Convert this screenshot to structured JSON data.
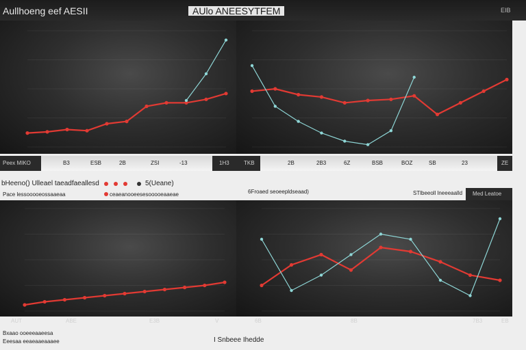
{
  "header": {
    "left_title": "Aullhoeng eef AESII",
    "center_title": "AUlo ANEESYTFEM",
    "right_mark": "EIB"
  },
  "strip_labels": {
    "left_tag": "Peex MIKO",
    "ticks_left": [
      "B3",
      "ESB",
      "2B",
      "ZSI",
      "-13"
    ],
    "mid_tag": "1H3",
    "mid_tag2": "TKB",
    "ticks_right": [
      "2B",
      "2B3",
      "6Z",
      "BSB",
      "BOZ",
      "SB",
      "23"
    ],
    "right_tag": "ZE"
  },
  "legend": {
    "left_label": "bHeeno() Ulleael taeadfaeallesd",
    "left_sub": "Pace lessooooeossaaeaa",
    "mid_label": "5(Ueane)",
    "mid_sub": "ceaeanooeesesooooeaaeae",
    "center_note": "6Froaed seoeepldseaad)",
    "right_note": "STlbeeoll lneeeaalld",
    "right_tag": "Med Leatoe"
  },
  "bottom": {
    "ticks_left": [
      "AUT",
      "ABE",
      "E3B",
      "V"
    ],
    "ticks_right": [
      "6B",
      "8B",
      "7B3",
      "EB"
    ],
    "foot_left_1": "Bxaao ooeeeaaeesa",
    "foot_left_2": "Eeesaa eeaeaaeaaaee",
    "foot_center": "I Snbeee Ihedde"
  },
  "colors": {
    "red": "#e23a33",
    "teal": "#8ed6d6",
    "panel_bg": "#2a2a2a"
  },
  "chart_data": [
    {
      "type": "line",
      "panel": "top-left",
      "series": [
        {
          "color": "red",
          "x": [
            0,
            1,
            2,
            3,
            4,
            5,
            6,
            7,
            8,
            9,
            10
          ],
          "values": [
            12,
            13,
            15,
            14,
            20,
            22,
            35,
            38,
            38,
            41,
            46
          ]
        },
        {
          "color": "teal",
          "x": [
            8,
            9,
            10
          ],
          "values": [
            40,
            63,
            92
          ]
        }
      ],
      "ylim": [
        0,
        100
      ]
    },
    {
      "type": "line",
      "panel": "top-right",
      "series": [
        {
          "color": "red",
          "x": [
            0,
            1,
            2,
            3,
            4,
            5,
            6,
            7,
            8,
            9,
            10,
            11
          ],
          "values": [
            48,
            50,
            45,
            43,
            38,
            40,
            41,
            44,
            28,
            38,
            48,
            58
          ]
        },
        {
          "color": "teal",
          "x": [
            0,
            1,
            2,
            3,
            4,
            5,
            6,
            7
          ],
          "values": [
            70,
            35,
            22,
            12,
            5,
            2,
            14,
            60
          ]
        }
      ],
      "ylim": [
        0,
        100
      ]
    },
    {
      "type": "line",
      "panel": "bottom-left",
      "series": [
        {
          "color": "red",
          "x": [
            0,
            1,
            2,
            3,
            4,
            5,
            6,
            7,
            8,
            9,
            10
          ],
          "values": [
            6,
            9,
            11,
            13,
            15,
            17,
            19,
            21,
            23,
            25,
            28
          ]
        }
      ],
      "ylim": [
        0,
        100
      ]
    },
    {
      "type": "line",
      "panel": "bottom-right",
      "series": [
        {
          "color": "red",
          "x": [
            0,
            1,
            2,
            3,
            4,
            5,
            6,
            7,
            8
          ],
          "values": [
            25,
            45,
            55,
            40,
            62,
            58,
            48,
            35,
            30
          ]
        },
        {
          "color": "teal",
          "x": [
            0,
            1,
            2,
            3,
            4,
            5,
            6,
            7,
            8
          ],
          "values": [
            70,
            20,
            35,
            55,
            75,
            70,
            30,
            15,
            90
          ]
        }
      ],
      "ylim": [
        0,
        100
      ]
    }
  ]
}
